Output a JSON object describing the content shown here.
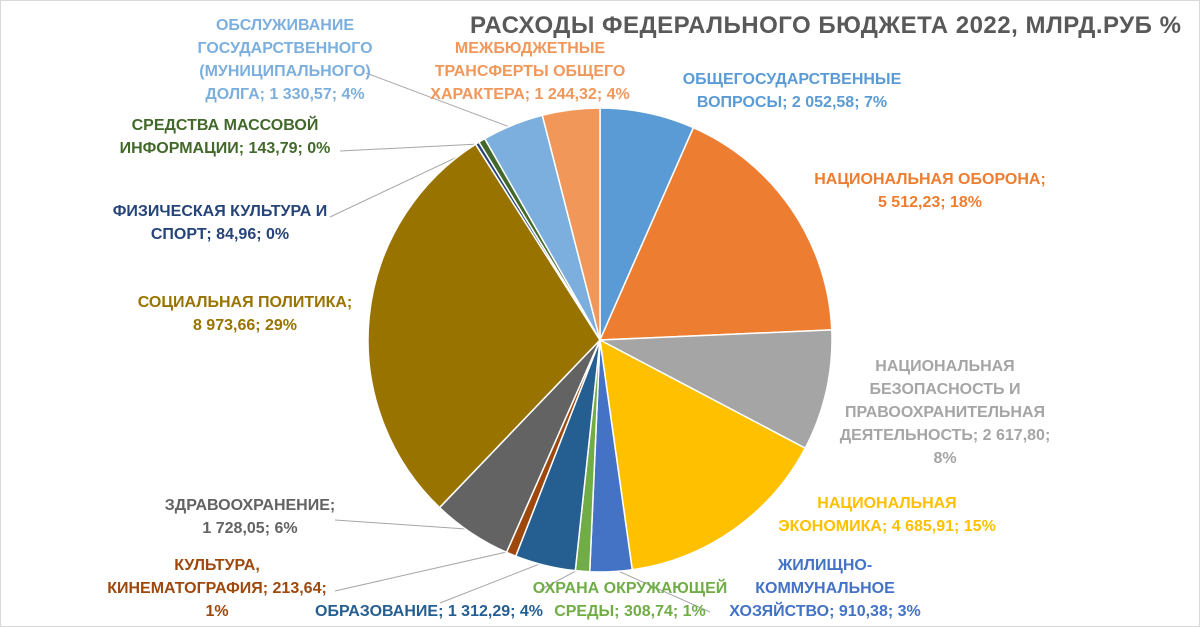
{
  "chart_data": {
    "type": "pie",
    "title": "РАСХОДЫ ФЕДЕРАЛЬНОГО БЮДЖЕТА 2022, МЛРД.РУБ %",
    "slices": [
      {
        "name": "ОБЩЕГОСУДАРСТВЕННЫЕ ВОПРОСЫ",
        "value": 2052.58,
        "percent": 7,
        "color": "#5b9bd5",
        "label": "ОБЩЕГОСУДАРСТВЕННЫЕ\nВОПРОСЫ; 2 052,58; 7%"
      },
      {
        "name": "НАЦИОНАЛЬНАЯ ОБОРОНА",
        "value": 5512.23,
        "percent": 18,
        "color": "#ed7d31",
        "label": "НАЦИОНАЛЬНАЯ ОБОРОНА;\n5 512,23; 18%"
      },
      {
        "name": "НАЦИОНАЛЬНАЯ БЕЗОПАСНОСТЬ И ПРАВООХРАНИТЕЛЬНАЯ ДЕЯТЕЛЬНОСТЬ",
        "value": 2617.8,
        "percent": 8,
        "color": "#a5a5a5",
        "label": "НАЦИОНАЛЬНАЯ\nБЕЗОПАСНОСТЬ И\nПРАВООХРАНИТЕЛЬНАЯ\nДЕЯТЕЛЬНОСТЬ; 2 617,80;\n8%"
      },
      {
        "name": "НАЦИОНАЛЬНАЯ ЭКОНОМИКА",
        "value": 4685.91,
        "percent": 15,
        "color": "#ffc000",
        "label": "НАЦИОНАЛЬНАЯ\nЭКОНОМИКА; 4 685,91; 15%"
      },
      {
        "name": "ЖИЛИЩНО-КОММУНАЛЬНОЕ ХОЗЯЙСТВО",
        "value": 910.38,
        "percent": 3,
        "color": "#4472c4",
        "label": "ЖИЛИЩНО-\nКОММУНАЛЬНОЕ\nХОЗЯЙСТВО; 910,38; 3%"
      },
      {
        "name": "ОХРАНА ОКРУЖАЮЩЕЙ СРЕДЫ",
        "value": 308.74,
        "percent": 1,
        "color": "#70ad47",
        "label": "ОХРАНА ОКРУЖАЮЩЕЙ\nСРЕДЫ; 308,74; 1%"
      },
      {
        "name": "ОБРАЗОВАНИЕ",
        "value": 1312.29,
        "percent": 4,
        "color": "#255e91",
        "label": "ОБРАЗОВАНИЕ; 1 312,29; 4%"
      },
      {
        "name": "КУЛЬТУРА, КИНЕМАТОГРАФИЯ",
        "value": 213.64,
        "percent": 1,
        "color": "#9e480e",
        "label": "КУЛЬТУРА,\nКИНЕМАТОГРАФИЯ; 213,64;\n1%"
      },
      {
        "name": "ЗДРАВООХРАНЕНИЕ",
        "value": 1728.05,
        "percent": 6,
        "color": "#636363",
        "label": "ЗДРАВООХРАНЕНИЕ;\n1 728,05; 6%"
      },
      {
        "name": "СОЦИАЛЬНАЯ ПОЛИТИКА",
        "value": 8973.66,
        "percent": 29,
        "color": "#997300",
        "label": "СОЦИАЛЬНАЯ ПОЛИТИКА;\n8 973,66; 29%"
      },
      {
        "name": "ФИЗИЧЕСКАЯ КУЛЬТУРА И СПОРТ",
        "value": 84.96,
        "percent": 0,
        "color": "#264478",
        "label": "ФИЗИЧЕСКАЯ КУЛЬТУРА И\nСПОРТ; 84,96; 0%"
      },
      {
        "name": "СРЕДСТВА МАССОВОЙ ИНФОРМАЦИИ",
        "value": 143.79,
        "percent": 0,
        "color": "#43682b",
        "label": "СРЕДСТВА МАССОВОЙ\nИНФОРМАЦИИ; 143,79; 0%"
      },
      {
        "name": "ОБСЛУЖИВАНИЕ ГОСУДАРСТВЕННОГО (МУНИЦИПАЛЬНОГО) ДОЛГА",
        "value": 1330.57,
        "percent": 4,
        "color": "#7cafdd",
        "label": "ОБСЛУЖИВАНИЕ\nГОСУДАРСТВЕННОГО\n(МУНИЦИПАЛЬНОГО)\nДОЛГА; 1 330,57; 4%"
      },
      {
        "name": "МЕЖБЮДЖЕТНЫЕ ТРАНСФЕРТЫ ОБЩЕГО ХАРАКТЕРА",
        "value": 1244.32,
        "percent": 4,
        "color": "#f1975a",
        "label": "МЕЖБЮДЖЕТНЫЕ\nТРАНСФЕРТЫ ОБЩЕГО\nХАРАКТЕРА; 1 244,32; 4%"
      }
    ]
  }
}
